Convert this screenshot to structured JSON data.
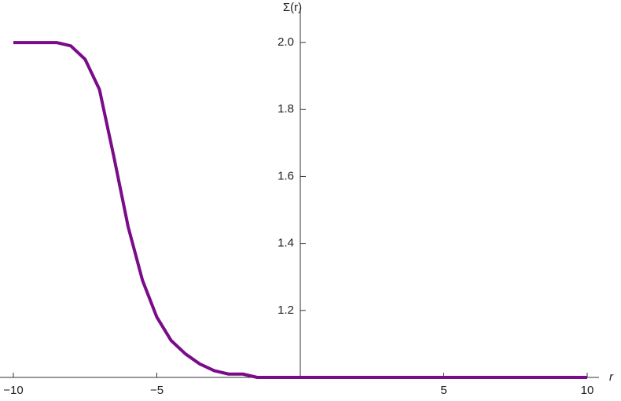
{
  "chart_data": {
    "type": "line",
    "xlabel": "r",
    "ylabel": "Σ(r)",
    "x": [
      -10,
      -9.5,
      -9,
      -8.5,
      -8,
      -7.5,
      -7,
      -6.5,
      -6,
      -5.5,
      -5,
      -4.5,
      -4,
      -3.5,
      -3,
      -2.5,
      -2,
      -1.5,
      -1,
      -0.5,
      0,
      1,
      2,
      4,
      6,
      8,
      10
    ],
    "series": [
      {
        "color": "#7a0b89",
        "values": [
          2.0,
          2.0,
          2.0,
          2.0,
          1.99,
          1.95,
          1.86,
          1.66,
          1.45,
          1.29,
          1.18,
          1.11,
          1.07,
          1.04,
          1.02,
          1.01,
          1.01,
          1.0,
          1.0,
          1.0,
          1.0,
          1.0,
          1.0,
          1.0,
          1.0,
          1.0,
          1.0
        ]
      }
    ],
    "xlim": [
      -10,
      10
    ],
    "ylim": [
      1,
      2.08
    ],
    "xticks": [
      {
        "value": -10,
        "label": "−10"
      },
      {
        "value": -5,
        "label": "−5"
      },
      5,
      10
    ],
    "yticks": [
      1.2,
      1.4,
      1.6,
      1.8,
      {
        "value": 2,
        "label": "2.0"
      }
    ]
  }
}
